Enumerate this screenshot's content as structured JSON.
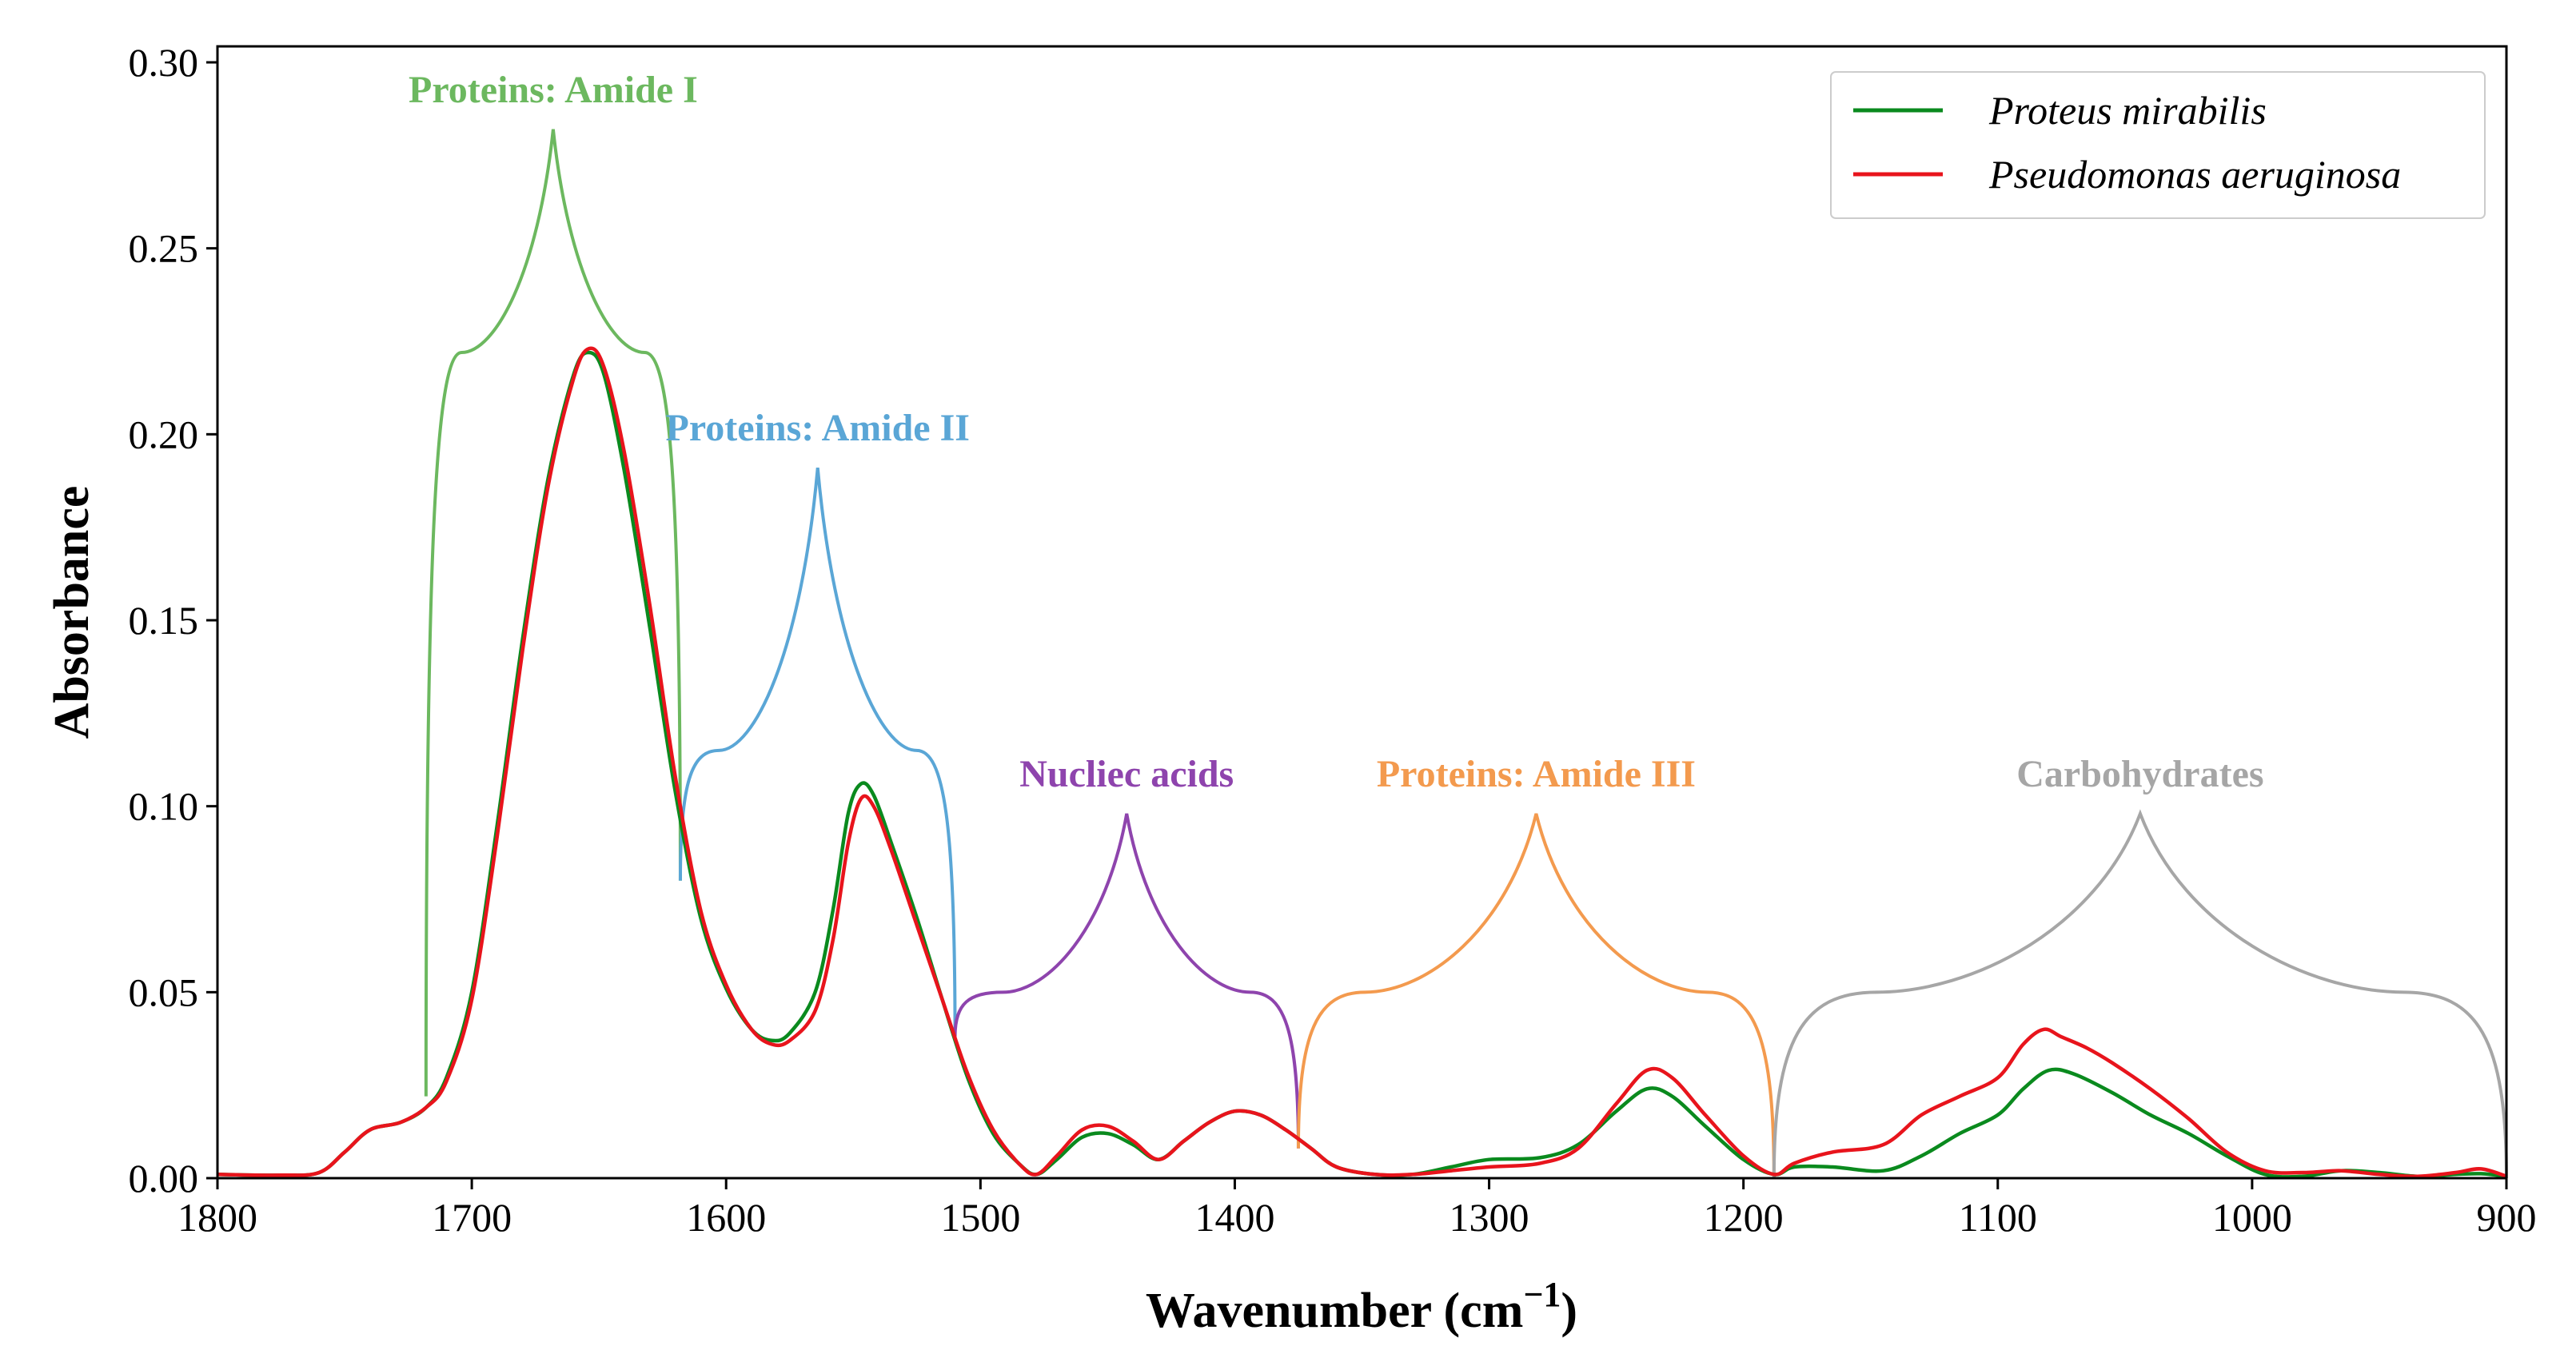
{
  "chart_data": {
    "type": "line",
    "title": "",
    "xlabel": "Wavenumber (cm",
    "xlabel_sup": "−1",
    "xlabel_close": ")",
    "ylabel": "Absorbance",
    "xlim": [
      1800,
      900
    ],
    "ylim": [
      0,
      0.3
    ],
    "x_reversed": true,
    "xticks": [
      1800,
      1700,
      1600,
      1500,
      1400,
      1300,
      1200,
      1100,
      1000,
      900
    ],
    "xtick_labels": [
      "1800",
      "1700",
      "1600",
      "1500",
      "1400",
      "1300",
      "1200",
      "1100",
      "1000",
      "900"
    ],
    "yticks": [
      0,
      0.05,
      0.1,
      0.15,
      0.2,
      0.25,
      0.3
    ],
    "ytick_labels": [
      "0.00",
      "0.05",
      "0.10",
      "0.15",
      "0.20",
      "0.25",
      "0.30"
    ],
    "grid": false,
    "legend_position": "top-right",
    "series": [
      {
        "name": "Proteus mirabilis",
        "color": "#0a8a1e",
        "points": [
          [
            1800,
            0.001
          ],
          [
            1775,
            0.0008
          ],
          [
            1760,
            0.0015
          ],
          [
            1750,
            0.007
          ],
          [
            1740,
            0.013
          ],
          [
            1728,
            0.015
          ],
          [
            1718,
            0.019
          ],
          [
            1710,
            0.027
          ],
          [
            1700,
            0.05
          ],
          [
            1690,
            0.095
          ],
          [
            1680,
            0.145
          ],
          [
            1670,
            0.188
          ],
          [
            1660,
            0.216
          ],
          [
            1654,
            0.222
          ],
          [
            1648,
            0.216
          ],
          [
            1640,
            0.19
          ],
          [
            1630,
            0.148
          ],
          [
            1620,
            0.104
          ],
          [
            1610,
            0.07
          ],
          [
            1600,
            0.051
          ],
          [
            1590,
            0.04
          ],
          [
            1582,
            0.037
          ],
          [
            1575,
            0.039
          ],
          [
            1565,
            0.05
          ],
          [
            1558,
            0.072
          ],
          [
            1552,
            0.098
          ],
          [
            1547,
            0.106
          ],
          [
            1542,
            0.103
          ],
          [
            1535,
            0.09
          ],
          [
            1525,
            0.07
          ],
          [
            1515,
            0.048
          ],
          [
            1505,
            0.027
          ],
          [
            1495,
            0.012
          ],
          [
            1485,
            0.004
          ],
          [
            1478,
            0.001
          ],
          [
            1470,
            0.005
          ],
          [
            1460,
            0.011
          ],
          [
            1450,
            0.012
          ],
          [
            1440,
            0.009
          ],
          [
            1430,
            0.005
          ],
          [
            1420,
            0.01
          ],
          [
            1410,
            0.015
          ],
          [
            1400,
            0.018
          ],
          [
            1390,
            0.017
          ],
          [
            1380,
            0.013
          ],
          [
            1370,
            0.008
          ],
          [
            1360,
            0.003
          ],
          [
            1345,
            0.001
          ],
          [
            1330,
            0.001
          ],
          [
            1315,
            0.003
          ],
          [
            1300,
            0.005
          ],
          [
            1280,
            0.0055
          ],
          [
            1265,
            0.009
          ],
          [
            1250,
            0.018
          ],
          [
            1238,
            0.024
          ],
          [
            1228,
            0.022
          ],
          [
            1215,
            0.014
          ],
          [
            1200,
            0.005
          ],
          [
            1188,
            0.001
          ],
          [
            1180,
            0.003
          ],
          [
            1165,
            0.003
          ],
          [
            1145,
            0.002
          ],
          [
            1130,
            0.006
          ],
          [
            1115,
            0.012
          ],
          [
            1100,
            0.017
          ],
          [
            1090,
            0.024
          ],
          [
            1080,
            0.029
          ],
          [
            1070,
            0.028
          ],
          [
            1055,
            0.023
          ],
          [
            1040,
            0.017
          ],
          [
            1025,
            0.012
          ],
          [
            1010,
            0.006
          ],
          [
            995,
            0.001
          ],
          [
            980,
            0.0005
          ],
          [
            965,
            0.002
          ],
          [
            950,
            0.0015
          ],
          [
            935,
            0.0005
          ],
          [
            920,
            0.001
          ],
          [
            910,
            0.0012
          ],
          [
            900,
            0.0005
          ]
        ]
      },
      {
        "name": "Pseudomonas aeruginosa",
        "color": "#e8141c",
        "points": [
          [
            1800,
            0.001
          ],
          [
            1775,
            0.0008
          ],
          [
            1760,
            0.0015
          ],
          [
            1750,
            0.007
          ],
          [
            1740,
            0.013
          ],
          [
            1728,
            0.015
          ],
          [
            1718,
            0.019
          ],
          [
            1710,
            0.026
          ],
          [
            1700,
            0.048
          ],
          [
            1690,
            0.092
          ],
          [
            1680,
            0.142
          ],
          [
            1670,
            0.186
          ],
          [
            1660,
            0.215
          ],
          [
            1654,
            0.223
          ],
          [
            1648,
            0.218
          ],
          [
            1640,
            0.195
          ],
          [
            1630,
            0.154
          ],
          [
            1620,
            0.108
          ],
          [
            1610,
            0.072
          ],
          [
            1600,
            0.052
          ],
          [
            1590,
            0.04
          ],
          [
            1582,
            0.036
          ],
          [
            1575,
            0.037
          ],
          [
            1565,
            0.045
          ],
          [
            1558,
            0.064
          ],
          [
            1552,
            0.09
          ],
          [
            1547,
            0.102
          ],
          [
            1542,
            0.1
          ],
          [
            1535,
            0.088
          ],
          [
            1525,
            0.068
          ],
          [
            1515,
            0.048
          ],
          [
            1505,
            0.028
          ],
          [
            1495,
            0.013
          ],
          [
            1485,
            0.004
          ],
          [
            1478,
            0.001
          ],
          [
            1470,
            0.006
          ],
          [
            1460,
            0.013
          ],
          [
            1450,
            0.014
          ],
          [
            1440,
            0.01
          ],
          [
            1430,
            0.005
          ],
          [
            1420,
            0.01
          ],
          [
            1410,
            0.015
          ],
          [
            1400,
            0.018
          ],
          [
            1390,
            0.017
          ],
          [
            1380,
            0.013
          ],
          [
            1370,
            0.008
          ],
          [
            1360,
            0.003
          ],
          [
            1345,
            0.001
          ],
          [
            1330,
            0.001
          ],
          [
            1315,
            0.002
          ],
          [
            1300,
            0.003
          ],
          [
            1280,
            0.004
          ],
          [
            1265,
            0.008
          ],
          [
            1250,
            0.02
          ],
          [
            1238,
            0.029
          ],
          [
            1228,
            0.027
          ],
          [
            1215,
            0.017
          ],
          [
            1200,
            0.006
          ],
          [
            1188,
            0.001
          ],
          [
            1180,
            0.004
          ],
          [
            1165,
            0.007
          ],
          [
            1145,
            0.009
          ],
          [
            1130,
            0.017
          ],
          [
            1115,
            0.022
          ],
          [
            1100,
            0.027
          ],
          [
            1090,
            0.036
          ],
          [
            1082,
            0.04
          ],
          [
            1075,
            0.038
          ],
          [
            1065,
            0.035
          ],
          [
            1055,
            0.031
          ],
          [
            1040,
            0.024
          ],
          [
            1025,
            0.016
          ],
          [
            1010,
            0.007
          ],
          [
            995,
            0.002
          ],
          [
            980,
            0.0015
          ],
          [
            965,
            0.002
          ],
          [
            950,
            0.001
          ],
          [
            935,
            0.0005
          ],
          [
            920,
            0.0015
          ],
          [
            910,
            0.0025
          ],
          [
            900,
            0.0005
          ]
        ]
      }
    ],
    "regions": [
      {
        "label": "Proteins: Amide I",
        "color": "#6cb85f",
        "start": 1718,
        "end": 1618,
        "base": 0.022,
        "base_end": 0.08,
        "plateau": 0.222,
        "peak": 0.282
      },
      {
        "label": "Proteins: Amide II",
        "color": "#5aa6d6",
        "start": 1618,
        "end": 1510,
        "base": 0.08,
        "base_end": 0.038,
        "plateau": 0.115,
        "peak": 0.191
      },
      {
        "label": "Nucliec acids",
        "color": "#8e44ad",
        "start": 1510,
        "end": 1375,
        "base": 0.038,
        "base_end": 0.008,
        "plateau": 0.05,
        "peak": 0.098
      },
      {
        "label": "Proteins: Amide III",
        "color": "#f39a4e",
        "start": 1375,
        "end": 1188,
        "base": 0.008,
        "base_end": 0.0,
        "plateau": 0.05,
        "peak": 0.098
      },
      {
        "label": "Carbohydrates",
        "color": "#a6a6a6",
        "start": 1188,
        "end": 900,
        "base": 0.0,
        "base_end": 0.0,
        "plateau": 0.05,
        "peak": 0.098
      }
    ]
  }
}
